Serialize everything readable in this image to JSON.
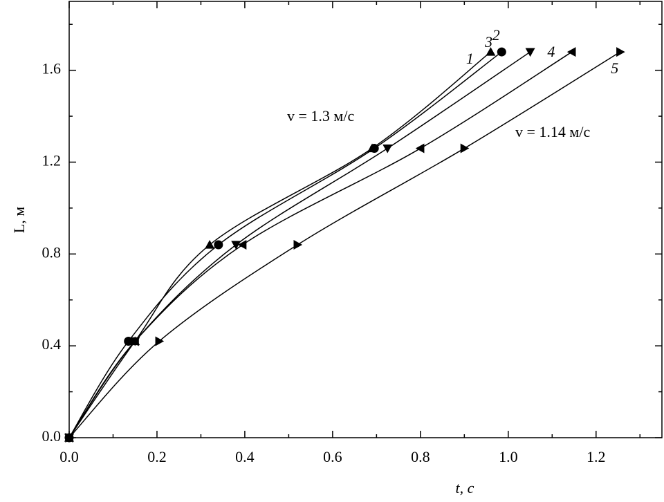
{
  "chart_data": {
    "type": "line",
    "xlabel": "t, с",
    "ylabel": "L, м",
    "annotations": [
      "v = 1.3 м/с",
      "v = 1.14 м/с"
    ],
    "xlim": [
      0,
      1.35
    ],
    "ylim": [
      0,
      1.9
    ],
    "xticks": [
      {
        "value": 0,
        "label": "0.0"
      },
      0.2,
      0.4,
      0.6,
      0.8,
      {
        "value": 1,
        "label": "1.0"
      },
      1.2
    ],
    "yticks": [
      {
        "value": 0,
        "label": "0.0"
      },
      0.4,
      0.8,
      1.2,
      1.6
    ],
    "xminorticks": [
      0.1,
      0.3,
      0.5,
      0.7,
      0.9,
      1.1,
      1.3
    ],
    "yminorticks": [
      0.2,
      0.6,
      1.0,
      1.4,
      1.8
    ],
    "series": [
      {
        "name": "1",
        "marker": "triangle-up",
        "color": "#000000",
        "x": [
          0,
          0.15,
          0.32,
          0.69,
          0.96
        ],
        "values": [
          0,
          0.42,
          0.84,
          1.26,
          1.68
        ]
      },
      {
        "name": "2",
        "marker": "circle",
        "color": "#000000",
        "x": [
          0,
          0.135,
          0.34,
          0.695,
          0.985
        ],
        "values": [
          0,
          0.42,
          0.84,
          1.26,
          1.68
        ]
      },
      {
        "name": "3",
        "marker": "triangle-down",
        "color": "#000000",
        "x": [
          0,
          0.15,
          0.38,
          0.725,
          1.05
        ],
        "values": [
          0,
          0.42,
          0.84,
          1.26,
          1.68
        ]
      },
      {
        "name": "4",
        "marker": "triangle-left",
        "color": "#000000",
        "x": [
          0,
          0.15,
          0.395,
          0.8,
          1.145
        ],
        "values": [
          0,
          0.42,
          0.84,
          1.26,
          1.68
        ]
      },
      {
        "name": "5",
        "marker": "triangle-right",
        "color": "#000000",
        "x": [
          0,
          0.205,
          0.52,
          0.9,
          1.255
        ],
        "values": [
          0,
          0.42,
          0.84,
          1.26,
          1.68
        ]
      }
    ]
  }
}
